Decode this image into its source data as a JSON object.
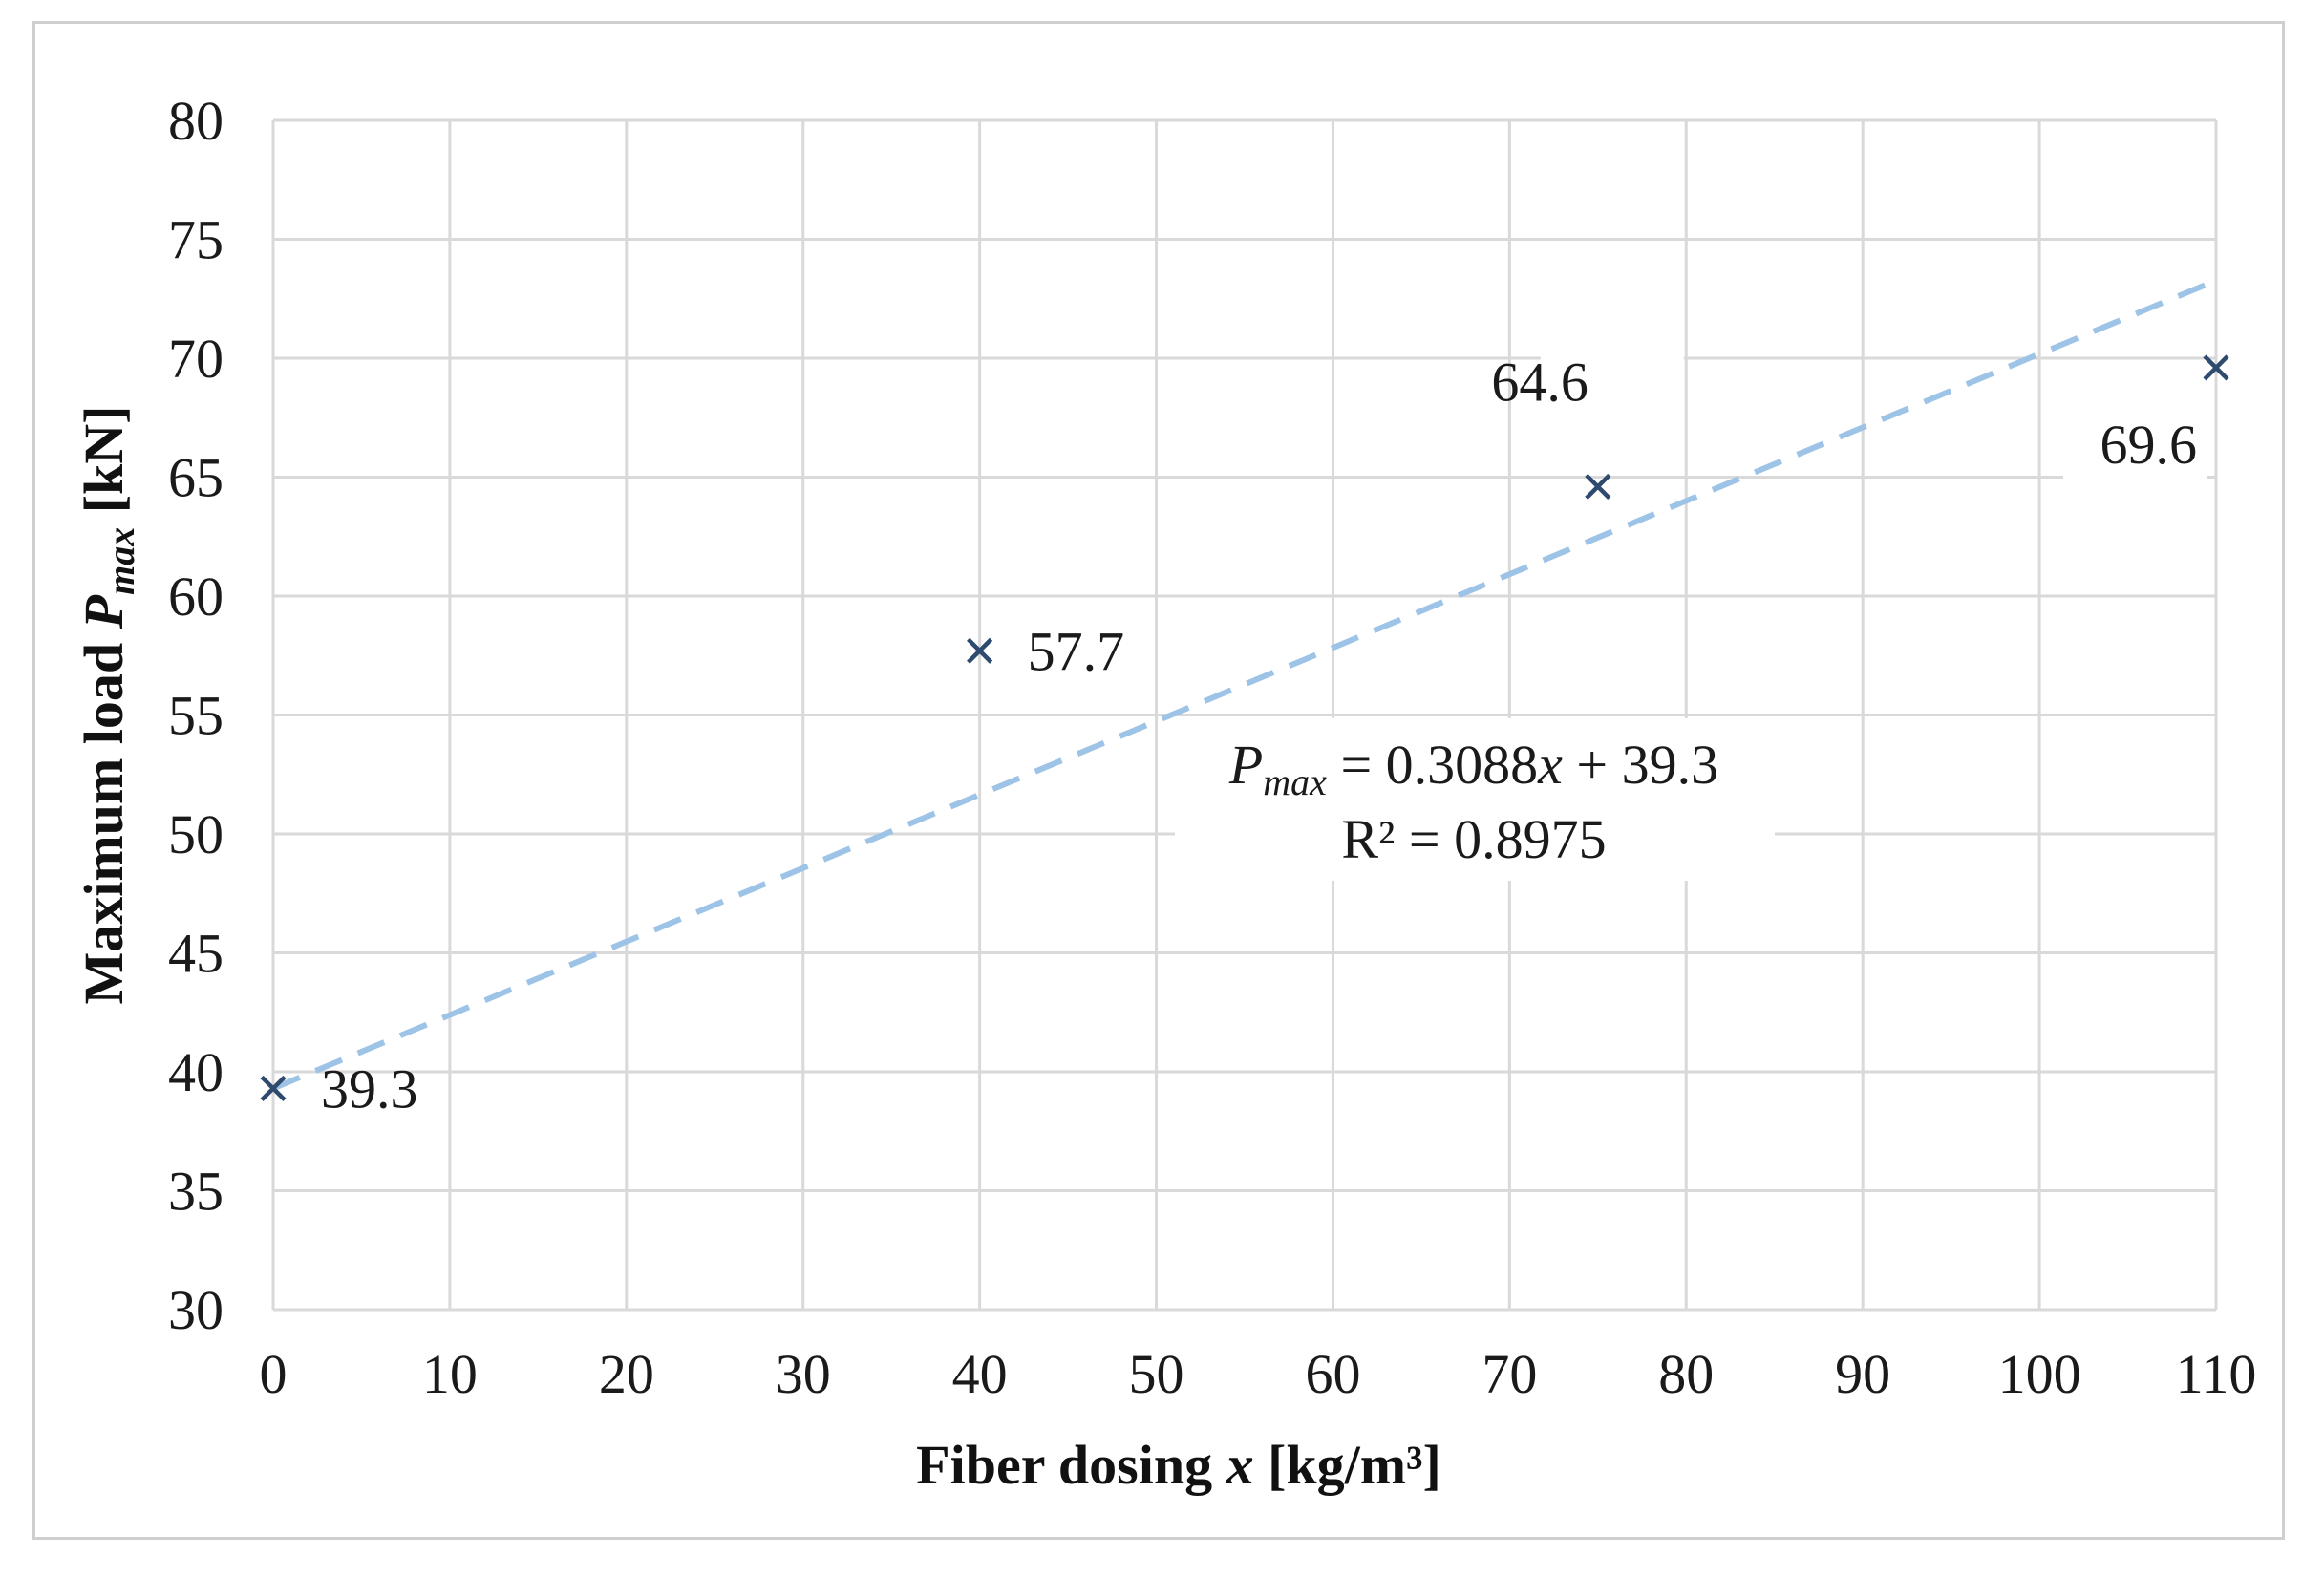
{
  "chart_data": {
    "type": "scatter",
    "title": "",
    "xlabel": {
      "prefix": "Fiber dosing ",
      "var": "x",
      "suffix": " [kg/m³]"
    },
    "ylabel": {
      "prefix": "Maximum load ",
      "var": "P",
      "sub": "max",
      "suffix": " [kN]"
    },
    "xlim": [
      0,
      110
    ],
    "ylim": [
      30,
      80
    ],
    "xticks": [
      0,
      10,
      20,
      30,
      40,
      50,
      60,
      70,
      80,
      90,
      100,
      110
    ],
    "yticks": [
      30,
      35,
      40,
      45,
      50,
      55,
      60,
      65,
      70,
      75,
      80
    ],
    "grid": true,
    "series": [
      {
        "name": "Maximum load",
        "marker": "x",
        "color": "#2e4a6e",
        "x": [
          0,
          40,
          75,
          110
        ],
        "y": [
          39.3,
          57.7,
          64.6,
          69.6
        ],
        "labels": [
          "39.3",
          "57.7",
          "64.6",
          "69.6"
        ]
      }
    ],
    "trendline": {
      "type": "linear",
      "slope": 0.3088,
      "intercept": 39.3,
      "x_range": [
        0,
        110
      ],
      "style": "dashed",
      "color": "#9dc3e6",
      "equation": {
        "var": "P",
        "sub": "max",
        "rhs_a": " = 0.3088",
        "rhs_x": "x",
        "rhs_b": " + 39.3"
      },
      "r2": "R² = 0.8975"
    }
  },
  "colors": {
    "grid": "#d9d9d9",
    "frame": "#cfcfcf",
    "text": "#1a1a1a"
  }
}
